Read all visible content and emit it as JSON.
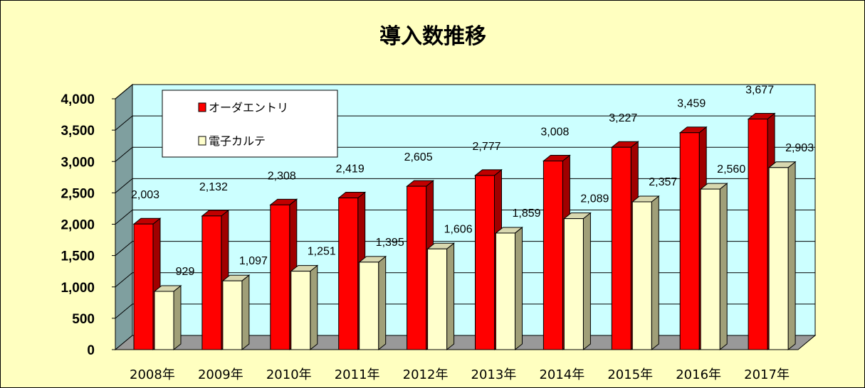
{
  "chart_data": {
    "type": "bar",
    "title": "導入数推移",
    "categories": [
      "2008年",
      "2009年",
      "2010年",
      "2011年",
      "2012年",
      "2013年",
      "2014年",
      "2015年",
      "2016年",
      "2017年"
    ],
    "series": [
      {
        "name": "オーダエントリ",
        "values": [
          2003,
          2132,
          2308,
          2419,
          2605,
          2777,
          3008,
          3227,
          3459,
          3677
        ],
        "labels": [
          "2,003",
          "2,132",
          "2,308",
          "2,419",
          "2,605",
          "2,777",
          "3,008",
          "3,227",
          "3,459",
          "3,677"
        ],
        "color": "#ff0000",
        "side_color": "#a00000",
        "top_color": "#c00000"
      },
      {
        "name": "電子カルテ",
        "values": [
          929,
          1097,
          1251,
          1395,
          1606,
          1859,
          2089,
          2357,
          2560,
          2903
        ],
        "labels": [
          "929",
          "1,097",
          "1,251",
          "1,395",
          "1,606",
          "1,859",
          "2,089",
          "2,357",
          "2,560",
          "2,903"
        ],
        "color": "#ffffcc",
        "side_color": "#a09f78",
        "top_color": "#d8d8b0"
      }
    ],
    "ylim": [
      0,
      4000
    ],
    "yticks": [
      0,
      500,
      1000,
      1500,
      2000,
      2500,
      3000,
      3500,
      4000
    ],
    "ytick_labels": [
      "0",
      "500",
      "1,000",
      "1,500",
      "2,000",
      "2,500",
      "3,000",
      "3,500",
      "4,000"
    ],
    "grid": true,
    "legend_position": "top-left",
    "plot_background": "#ccffff",
    "page_background": "#ffffc0"
  }
}
